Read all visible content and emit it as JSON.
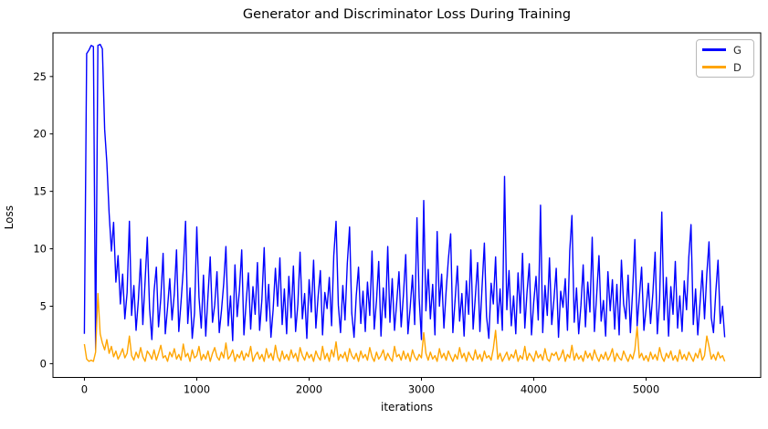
{
  "figure": {
    "title": "Generator and Discriminator Loss During Training",
    "xlabel": "iterations",
    "ylabel": "Loss",
    "background_color": "#ffffff",
    "frame_color": "#000000",
    "text_color": "#000000"
  },
  "legend": {
    "position": "upper right",
    "entries": [
      {
        "label": "G",
        "color": "#0000ff"
      },
      {
        "label": "D",
        "color": "#ffa500"
      }
    ]
  },
  "chart_data": {
    "type": "line",
    "title": "Generator and Discriminator Loss During Training",
    "xlabel": "iterations",
    "ylabel": "Loss",
    "grid": false,
    "legend_position": "upper right",
    "xlim": [
      -280,
      6020
    ],
    "ylim": [
      -1.2,
      28.8
    ],
    "xticks": [
      0,
      1000,
      2000,
      3000,
      4000,
      5000
    ],
    "yticks": [
      0,
      5,
      10,
      15,
      20,
      25
    ],
    "x_start": 0,
    "x_step": 20,
    "series": [
      {
        "name": "G",
        "color": "#0000ff",
        "values": [
          2.6,
          27.0,
          27.3,
          27.7,
          27.6,
          1.2,
          27.7,
          27.8,
          27.4,
          20.4,
          17.5,
          13.1,
          9.8,
          12.3,
          7.1,
          9.4,
          5.2,
          7.8,
          3.9,
          6.2,
          12.4,
          4.2,
          6.8,
          2.9,
          5.5,
          9.1,
          3.4,
          7.2,
          11.0,
          4.8,
          2.1,
          6.3,
          8.4,
          3.2,
          5.7,
          9.6,
          2.6,
          4.9,
          7.4,
          3.8,
          6.1,
          9.9,
          2.8,
          5.3,
          8.2,
          12.4,
          3.5,
          6.6,
          2.2,
          4.4,
          11.9,
          5.8,
          3.1,
          7.7,
          2.4,
          6.0,
          9.3,
          3.6,
          5.1,
          8.0,
          2.7,
          4.6,
          7.0,
          10.2,
          3.3,
          5.9,
          2.0,
          8.6,
          4.1,
          6.4,
          9.9,
          2.5,
          5.4,
          7.9,
          3.0,
          6.7,
          4.3,
          8.8,
          2.9,
          5.6,
          10.1,
          3.7,
          6.9,
          2.3,
          4.7,
          8.3,
          5.0,
          9.2,
          3.4,
          6.5,
          2.6,
          7.6,
          4.0,
          8.5,
          2.8,
          5.2,
          9.7,
          3.9,
          6.1,
          2.2,
          7.3,
          4.5,
          9.0,
          3.1,
          5.8,
          8.1,
          2.5,
          6.2,
          4.8,
          7.5,
          3.3,
          9.4,
          12.4,
          5.1,
          2.7,
          6.8,
          3.8,
          8.7,
          11.9,
          4.4,
          2.3,
          5.9,
          8.4,
          3.5,
          6.3,
          2.8,
          7.1,
          4.2,
          9.8,
          3.0,
          5.5,
          8.9,
          2.4,
          6.6,
          4.0,
          10.2,
          3.6,
          7.4,
          2.9,
          5.3,
          8.0,
          3.2,
          6.0,
          9.5,
          2.6,
          4.9,
          7.7,
          3.4,
          12.7,
          5.7,
          2.1,
          14.2,
          4.6,
          8.2,
          3.9,
          6.9,
          2.5,
          11.5,
          5.0,
          7.8,
          3.1,
          6.4,
          9.1,
          11.3,
          2.7,
          5.6,
          8.5,
          3.7,
          6.1,
          2.4,
          7.2,
          4.3,
          9.9,
          3.0,
          5.8,
          8.8,
          2.8,
          6.7,
          10.5,
          4.1,
          2.2,
          7.0,
          5.2,
          9.3,
          3.5,
          6.5,
          2.9,
          16.3,
          4.7,
          8.1,
          3.3,
          5.9,
          2.6,
          7.9,
          4.4,
          9.6,
          3.1,
          6.2,
          8.7,
          2.5,
          5.4,
          7.6,
          3.8,
          13.8,
          2.7,
          6.8,
          4.2,
          9.2,
          3.4,
          5.7,
          8.3,
          2.3,
          6.3,
          4.9,
          7.4,
          2.9,
          9.8,
          12.9,
          3.6,
          6.6,
          2.6,
          5.1,
          8.6,
          3.2,
          7.1,
          4.5,
          11.0,
          2.8,
          6.0,
          9.4,
          3.7,
          5.5,
          2.4,
          8.0,
          4.6,
          7.3,
          3.0,
          6.9,
          2.5,
          9.0,
          5.2,
          3.9,
          7.7,
          2.7,
          6.4,
          10.8,
          3.3,
          5.8,
          8.4,
          2.9,
          4.8,
          7.0,
          3.5,
          6.1,
          9.7,
          2.6,
          5.6,
          13.2,
          3.8,
          7.5,
          2.4,
          6.7,
          4.3,
          8.9,
          3.1,
          5.9,
          2.8,
          7.2,
          4.7,
          9.3,
          12.1,
          3.4,
          6.5,
          2.5,
          5.3,
          8.1,
          3.9,
          7.8,
          10.6,
          4.0,
          2.7,
          6.2,
          9.0,
          3.5,
          5.0,
          2.3
        ]
      },
      {
        "name": "D",
        "color": "#ffa500",
        "values": [
          1.7,
          0.4,
          0.2,
          0.3,
          0.2,
          1.0,
          6.1,
          2.6,
          1.8,
          1.2,
          2.1,
          0.9,
          1.5,
          0.6,
          1.1,
          0.4,
          0.8,
          1.3,
          0.5,
          0.9,
          2.4,
          0.7,
          0.3,
          1.0,
          0.5,
          1.4,
          0.6,
          0.2,
          1.1,
          0.8,
          0.4,
          1.2,
          0.3,
          0.9,
          1.6,
          0.5,
          0.7,
          0.2,
          1.0,
          0.6,
          1.3,
          0.4,
          0.8,
          0.3,
          1.7,
          0.6,
          0.9,
          0.2,
          1.2,
          0.5,
          0.7,
          1.5,
          0.3,
          0.8,
          0.4,
          1.1,
          0.2,
          0.9,
          1.4,
          0.6,
          0.3,
          1.0,
          0.5,
          1.8,
          0.4,
          0.7,
          1.2,
          0.2,
          0.8,
          0.5,
          1.1,
          0.3,
          0.9,
          0.6,
          1.5,
          0.2,
          0.7,
          1.0,
          0.4,
          0.8,
          0.2,
          1.3,
          0.5,
          0.9,
          0.3,
          1.6,
          0.6,
          0.2,
          1.1,
          0.4,
          0.8,
          0.3,
          1.2,
          0.5,
          0.9,
          0.2,
          1.4,
          0.7,
          0.3,
          1.0,
          0.5,
          0.8,
          0.2,
          1.1,
          0.6,
          0.3,
          1.5,
          0.4,
          0.9,
          0.2,
          1.2,
          0.6,
          1.9,
          0.3,
          0.8,
          0.5,
          1.0,
          0.2,
          1.3,
          0.7,
          0.4,
          0.9,
          0.2,
          1.1,
          0.5,
          0.8,
          0.3,
          1.4,
          0.6,
          0.2,
          1.0,
          0.4,
          0.7,
          1.2,
          0.3,
          0.9,
          0.5,
          0.2,
          1.5,
          0.6,
          0.8,
          0.3,
          1.1,
          0.4,
          0.9,
          0.2,
          1.2,
          0.6,
          0.3,
          0.8,
          0.5,
          2.7,
          0.9,
          0.3,
          1.0,
          0.4,
          0.7,
          0.2,
          1.3,
          0.5,
          0.9,
          0.3,
          1.1,
          0.6,
          0.2,
          0.8,
          0.4,
          1.4,
          0.5,
          0.9,
          0.2,
          1.0,
          0.6,
          0.3,
          1.2,
          0.4,
          0.8,
          0.2,
          1.1,
          0.5,
          0.7,
          0.3,
          1.3,
          2.9,
          0.4,
          0.9,
          0.2,
          0.6,
          1.0,
          0.3,
          0.8,
          0.5,
          1.2,
          0.2,
          0.7,
          0.4,
          1.5,
          0.3,
          0.9,
          0.6,
          0.2,
          1.1,
          0.5,
          0.8,
          0.3,
          1.3,
          0.4,
          0.2,
          0.9,
          0.7,
          1.0,
          0.3,
          0.6,
          1.2,
          0.2,
          0.8,
          0.5,
          1.6,
          0.3,
          0.9,
          0.4,
          0.7,
          0.2,
          1.1,
          0.5,
          0.9,
          0.3,
          1.2,
          0.6,
          0.2,
          0.8,
          0.4,
          1.0,
          0.3,
          0.7,
          1.3,
          0.2,
          0.9,
          0.5,
          0.3,
          1.1,
          0.6,
          0.2,
          0.8,
          0.4,
          1.2,
          3.2,
          0.5,
          0.9,
          0.3,
          0.7,
          0.2,
          1.0,
          0.4,
          0.8,
          0.3,
          1.4,
          0.6,
          0.2,
          0.9,
          0.5,
          1.1,
          0.3,
          0.7,
          0.2,
          1.2,
          0.4,
          0.8,
          0.3,
          1.0,
          0.6,
          0.2,
          0.9,
          0.5,
          1.3,
          0.3,
          0.7,
          2.4,
          1.5,
          0.4,
          0.8,
          0.3,
          1.0,
          0.5,
          0.7,
          0.2
        ]
      }
    ]
  }
}
